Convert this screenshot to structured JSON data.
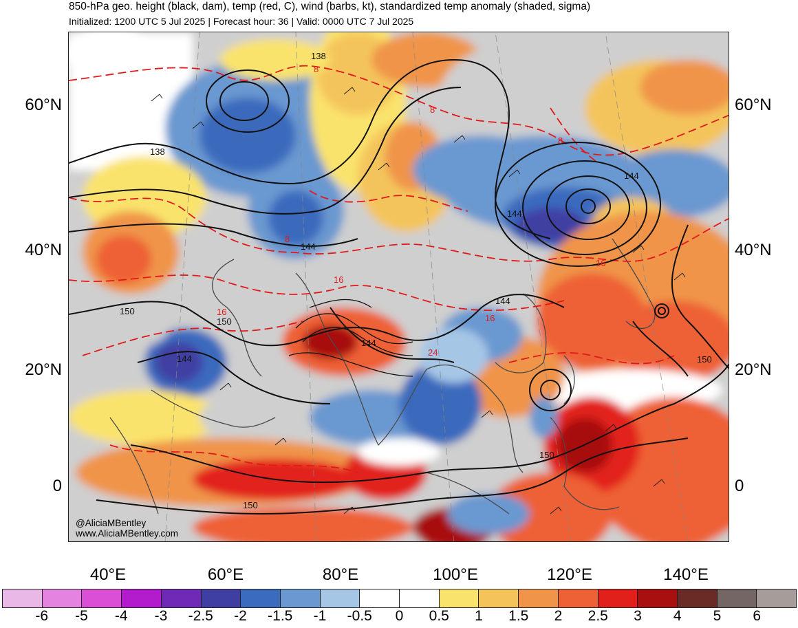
{
  "header": {
    "title": "850-hPa geo. height (black, dam), temp (red, C), wind (barbs, kt), standardized temp anomaly (shaded, sigma)",
    "subtitle": "Initialized: 1200 UTC 5 Jul 2025 | Forecast hour: 36 | Valid: 0000 UTC 7 Jul 2025"
  },
  "map": {
    "latitude_labels": [
      "60°N",
      "40°N",
      "20°N",
      "0"
    ],
    "longitude_labels": [
      "40°E",
      "60°E",
      "80°E",
      "100°E",
      "120°E",
      "140°E"
    ],
    "height_contour_labels": [
      "138",
      "138",
      "144",
      "144",
      "144",
      "144",
      "144",
      "144",
      "150",
      "150",
      "150",
      "150",
      "150"
    ],
    "temperature_contour_labels": [
      "8",
      "8",
      "8",
      "8",
      "16",
      "16",
      "16",
      "16",
      "24"
    ],
    "credit_lines": [
      "@AliciaMBentley",
      "www.AliciaMBentley.com"
    ]
  },
  "colorbar": {
    "labels": [
      "-6",
      "-5",
      "-4",
      "-3",
      "-2.5",
      "-2",
      "-1.5",
      "-1",
      "-0.5",
      "0",
      "0.5",
      "1",
      "1.5",
      "2",
      "2.5",
      "3",
      "4",
      "5",
      "6"
    ],
    "colors": [
      "#eab8e6",
      "#e584e0",
      "#d94fd6",
      "#b31ccc",
      "#7029b4",
      "#3f3fa3",
      "#3b6bbd",
      "#6b98d0",
      "#a6c6e6",
      "#ffffff",
      "#ffffff",
      "#fae36c",
      "#f4c45b",
      "#f0944a",
      "#ee6035",
      "#e2201b",
      "#a8100f",
      "#6a2a25",
      "#746664",
      "#a69c9a"
    ]
  }
}
